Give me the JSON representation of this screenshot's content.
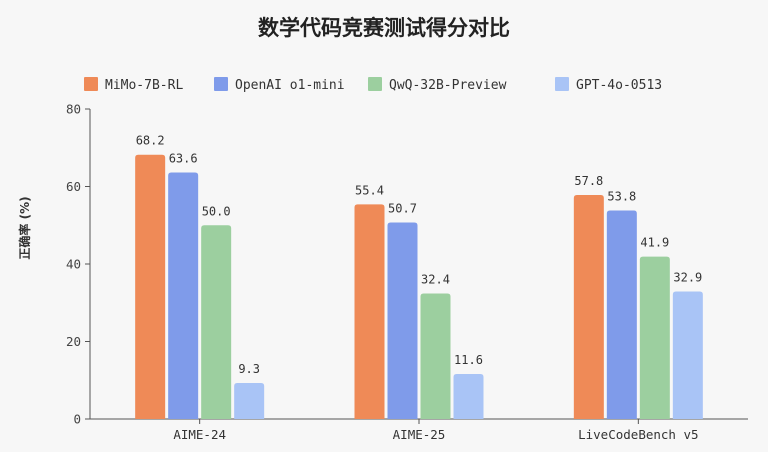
{
  "chart_data": {
    "type": "bar",
    "title": "数学代码竞赛测试得分对比",
    "ylabel": "正确率 (%)",
    "xlabel": "",
    "ylim": [
      0,
      80
    ],
    "yticks": [
      0,
      20,
      40,
      60,
      80
    ],
    "grid": false,
    "legend_position": "top",
    "categories": [
      "AIME-24",
      "AIME-25",
      "LiveCodeBench v5"
    ],
    "series": [
      {
        "name": "MiMo-7B-RL",
        "color": "#ef8a57",
        "values": [
          68.2,
          55.4,
          57.8
        ],
        "labels": [
          "68.2",
          "55.4",
          "57.8"
        ]
      },
      {
        "name": "OpenAI o1-mini",
        "color": "#7f9bea",
        "values": [
          63.6,
          50.7,
          53.8
        ],
        "labels": [
          "63.6",
          "50.7",
          "53.8"
        ]
      },
      {
        "name": "QwQ-32B-Preview",
        "color": "#9ccf9f",
        "values": [
          50.0,
          32.4,
          41.9
        ],
        "labels": [
          "50.0",
          "32.4",
          "41.9"
        ]
      },
      {
        "name": "GPT-4o-0513",
        "color": "#a9c4f6",
        "values": [
          9.3,
          11.6,
          32.9
        ],
        "labels": [
          "9.3",
          "11.6",
          "32.9"
        ]
      }
    ]
  }
}
